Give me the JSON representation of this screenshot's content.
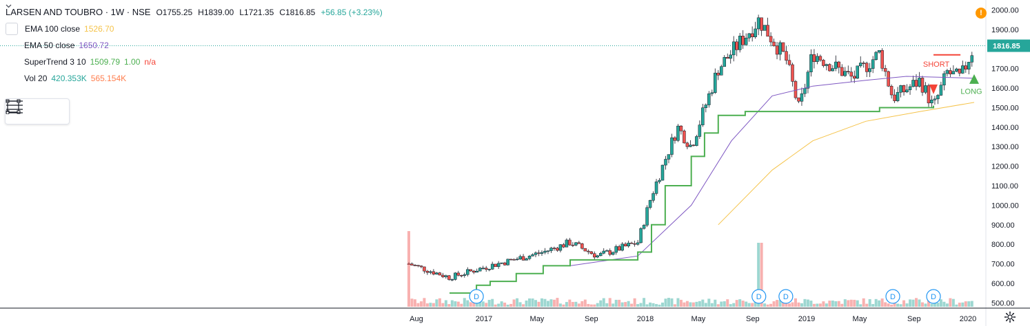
{
  "header": {
    "symbol_title": "LARSEN AND TOUBRO · 1W · NSE",
    "open": "O1755.25",
    "high": "H1839.00",
    "low": "L1721.35",
    "close": "C1816.85",
    "change": "+56.85 (+3.23%)",
    "change_color": "#26a69a"
  },
  "indicators": [
    {
      "name": "EMA 100 close",
      "values": [
        "1526.70"
      ],
      "colors": [
        "#f5c34a"
      ]
    },
    {
      "name": "EMA 50 close",
      "values": [
        "1650.72"
      ],
      "colors": [
        "#7e57c2"
      ]
    },
    {
      "name": "SuperTrend 3 10",
      "values": [
        "1509.79",
        "1.00",
        "n/a"
      ],
      "colors": [
        "#4caf50",
        "#4caf50",
        "#f44336"
      ]
    },
    {
      "name": "Vol 20",
      "values": [
        "420.353K",
        "565.154K"
      ],
      "colors": [
        "#26a69a",
        "#ff7e4e"
      ]
    }
  ],
  "icons": {
    "collapse": "chevron-down-icon",
    "rectangle_tool": "rectangle-icon",
    "lines_tool": "lines-icon",
    "alert": "exclamation-icon",
    "settings": "gear-icon"
  },
  "colors": {
    "up": "#26a69a",
    "down": "#ef5350",
    "ema100": "#f5c34a",
    "ema50": "#7e57c2",
    "supertrend_up": "#4caf50",
    "supertrend_down": "#f44336",
    "dividend": "#2196f3",
    "price_label_bg": "#26a69a"
  },
  "chart_data": {
    "type": "candlestick",
    "last_price_label": "1816.85",
    "y_axis": {
      "min": 480,
      "max": 2030,
      "ticks": [
        "2000.00",
        "1900.00",
        "1800.00",
        "1700.00",
        "1600.00",
        "1500.00",
        "1400.00",
        "1300.00",
        "1200.00",
        "1100.00",
        "1000.00",
        "900.00",
        "800.00",
        "700.00",
        "600.00",
        "500.00"
      ]
    },
    "x_axis": {
      "ticks": [
        "Aug",
        "2017",
        "May",
        "Sep",
        "2018",
        "May",
        "Sep",
        "2019",
        "May",
        "Sep",
        "2020"
      ]
    },
    "key_points": [
      {
        "date": "2016-07",
        "close": 700
      },
      {
        "date": "2016-10",
        "close": 630
      },
      {
        "date": "2017-01",
        "close": 690
      },
      {
        "date": "2017-05",
        "close": 760
      },
      {
        "date": "2017-07",
        "close": 810
      },
      {
        "date": "2017-09",
        "close": 740
      },
      {
        "date": "2017-12",
        "close": 810
      },
      {
        "date": "2018-01",
        "close": 1050
      },
      {
        "date": "2018-03",
        "close": 1400
      },
      {
        "date": "2018-04",
        "close": 1300
      },
      {
        "date": "2018-06",
        "close": 1700
      },
      {
        "date": "2018-09",
        "close": 1950
      },
      {
        "date": "2018-11",
        "close": 1750
      },
      {
        "date": "2018-12",
        "close": 1490
      },
      {
        "date": "2019-01",
        "close": 1780
      },
      {
        "date": "2019-04",
        "close": 1650
      },
      {
        "date": "2019-06",
        "close": 1780
      },
      {
        "date": "2019-07",
        "close": 1550
      },
      {
        "date": "2019-09",
        "close": 1640
      },
      {
        "date": "2019-10",
        "close": 1500
      },
      {
        "date": "2019-11",
        "close": 1680
      },
      {
        "date": "2019-12",
        "close": 1650
      },
      {
        "date": "2020-01",
        "close": 1816.85
      }
    ],
    "ema50_points": [
      {
        "date": "2017-07",
        "value": 690
      },
      {
        "date": "2017-12",
        "value": 740
      },
      {
        "date": "2018-04",
        "value": 1000
      },
      {
        "date": "2018-07",
        "value": 1330
      },
      {
        "date": "2018-10",
        "value": 1560
      },
      {
        "date": "2019-01",
        "value": 1610
      },
      {
        "date": "2019-05",
        "value": 1640
      },
      {
        "date": "2019-08",
        "value": 1660
      },
      {
        "date": "2020-01",
        "value": 1650.72
      }
    ],
    "ema100_points": [
      {
        "date": "2018-06",
        "value": 900
      },
      {
        "date": "2018-10",
        "value": 1180
      },
      {
        "date": "2019-01",
        "value": 1330
      },
      {
        "date": "2019-05",
        "value": 1430
      },
      {
        "date": "2019-09",
        "value": 1480
      },
      {
        "date": "2020-01",
        "value": 1526.7
      }
    ],
    "supertrend_up_steps": [
      {
        "date": "2016-10",
        "value": 550
      },
      {
        "date": "2016-12",
        "value": 590
      },
      {
        "date": "2017-01",
        "value": 610
      },
      {
        "date": "2017-03",
        "value": 650
      },
      {
        "date": "2017-05",
        "value": 690
      },
      {
        "date": "2017-07",
        "value": 720
      },
      {
        "date": "2017-12",
        "value": 760
      },
      {
        "date": "2018-01",
        "value": 900
      },
      {
        "date": "2018-02",
        "value": 1100
      },
      {
        "date": "2018-04",
        "value": 1250
      },
      {
        "date": "2018-05",
        "value": 1370
      },
      {
        "date": "2018-06",
        "value": 1460
      },
      {
        "date": "2018-08",
        "value": 1480
      },
      {
        "date": "2019-06",
        "value": 1500
      },
      {
        "date": "2019-10",
        "value": 1509.79
      }
    ],
    "supertrend_down_steps": [
      {
        "date": "2019-10",
        "value": 1770
      },
      {
        "date": "2019-12",
        "value": 1770
      }
    ],
    "signals": [
      {
        "label": "SHORT",
        "date": "2019-10",
        "type": "short"
      },
      {
        "label": "LONG",
        "date": "2020-01",
        "type": "long"
      }
    ],
    "dividend_markers": [
      {
        "date": "2016-12",
        "label": "D"
      },
      {
        "date": "2018-09",
        "label": "D"
      },
      {
        "date": "2018-11",
        "label": "D"
      },
      {
        "date": "2019-07",
        "label": "D"
      },
      {
        "date": "2019-10",
        "label": "D"
      }
    ],
    "volume_spikes": [
      {
        "date": "2016-07",
        "relative": 1.0
      },
      {
        "date": "2018-09",
        "relative": 0.8
      }
    ]
  }
}
